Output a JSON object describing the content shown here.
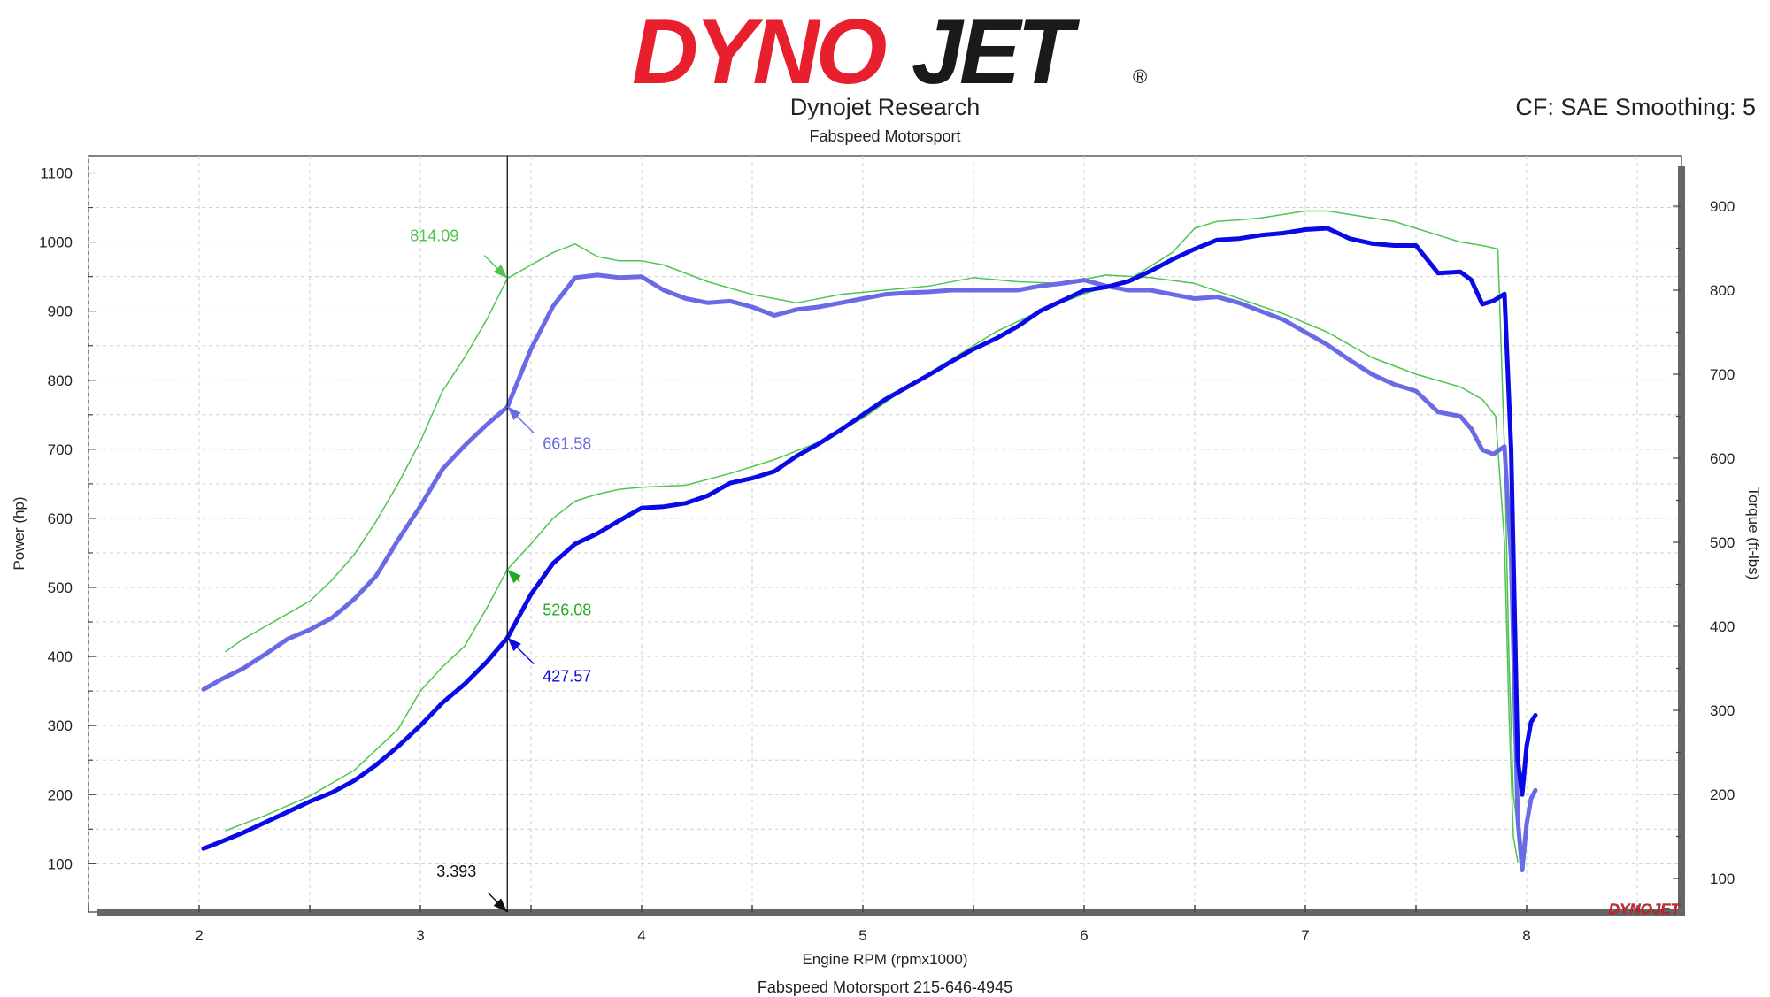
{
  "header": {
    "logo_text": "DYNOJET",
    "title": "Dynojet Research",
    "subtitle": "Fabspeed Motorsport",
    "settings": "CF: SAE Smoothing: 5"
  },
  "footer": {
    "text": "Fabspeed Motorsport 215-646-4945"
  },
  "colors": {
    "logo_red": "#e8202e",
    "logo_black": "#1a1a1a",
    "run_a": "#0a0ae6",
    "run_a_light": "#6a6ae6",
    "run_b": "#4fc44f",
    "cursor": "#111111"
  },
  "chart_data": {
    "type": "line",
    "xlabel": "Engine RPM (rpmx1000)",
    "ylabel": "Power (hp)",
    "y2label": "Torque (ft-lbs)",
    "xlim": [
      1.5,
      8.7
    ],
    "ylim": [
      30,
      1125
    ],
    "y2lim": [
      60,
      960
    ],
    "x_ticks": [
      "2",
      "3",
      "4",
      "5",
      "6",
      "7",
      "8"
    ],
    "y_ticks": [
      "100",
      "200",
      "300",
      "400",
      "500",
      "600",
      "700",
      "800",
      "900",
      "1000",
      "1100"
    ],
    "y2_ticks": [
      "100",
      "200",
      "300",
      "400",
      "500",
      "600",
      "700",
      "800",
      "900"
    ],
    "grid": true,
    "cursor": {
      "x": 3.393,
      "label": "3.393"
    },
    "watermark": "DYNOJET",
    "annotations": [
      {
        "label": "814.09",
        "target": "Torque (run B)",
        "x": 3.393,
        "value": 814.09,
        "axis": "torque",
        "color": "#4fc44f"
      },
      {
        "label": "661.58",
        "target": "Torque (run A)",
        "x": 3.393,
        "value": 661.58,
        "axis": "torque",
        "color": "#6a6ae6"
      },
      {
        "label": "526.08",
        "target": "Power (run B)",
        "x": 3.393,
        "value": 526.08,
        "axis": "power",
        "color": "#22aa22"
      },
      {
        "label": "427.57",
        "target": "Power (run A)",
        "x": 3.393,
        "value": 427.57,
        "axis": "power",
        "color": "#0a0ae6"
      }
    ],
    "series": [
      {
        "id": "power_a",
        "axis": "power",
        "color": "#0a0ae6",
        "width": 5,
        "x": [
          2.02,
          2.1,
          2.2,
          2.3,
          2.4,
          2.5,
          2.6,
          2.7,
          2.8,
          2.9,
          3.0,
          3.1,
          3.2,
          3.3,
          3.393,
          3.5,
          3.6,
          3.7,
          3.8,
          3.9,
          4.0,
          4.1,
          4.2,
          4.3,
          4.4,
          4.5,
          4.6,
          4.7,
          4.8,
          4.9,
          5.0,
          5.1,
          5.2,
          5.3,
          5.4,
          5.5,
          5.6,
          5.7,
          5.8,
          5.9,
          6.0,
          6.1,
          6.2,
          6.3,
          6.4,
          6.5,
          6.6,
          6.7,
          6.8,
          6.9,
          7.0,
          7.1,
          7.2,
          7.3,
          7.4,
          7.5,
          7.6,
          7.7,
          7.75,
          7.8,
          7.85,
          7.9,
          7.93,
          7.96,
          7.98,
          8.0,
          8.02,
          8.04
        ],
        "y": [
          122,
          132,
          145,
          160,
          175,
          190,
          203,
          220,
          243,
          270,
          300,
          333,
          360,
          392,
          427,
          490,
          535,
          563,
          578,
          597,
          615,
          617,
          622,
          633,
          651,
          658,
          668,
          690,
          708,
          728,
          750,
          772,
          790,
          808,
          827,
          845,
          860,
          878,
          900,
          915,
          930,
          935,
          943,
          958,
          975,
          990,
          1003,
          1005,
          1010,
          1013,
          1018,
          1020,
          1005,
          998,
          995,
          995,
          955,
          957,
          945,
          910,
          915,
          925,
          700,
          250,
          200,
          270,
          305,
          315
        ]
      },
      {
        "id": "torque_a",
        "axis": "torque",
        "color": "#6a6ae6",
        "width": 5,
        "x": [
          2.02,
          2.1,
          2.2,
          2.3,
          2.4,
          2.5,
          2.6,
          2.7,
          2.8,
          2.9,
          3.0,
          3.1,
          3.2,
          3.3,
          3.393,
          3.5,
          3.6,
          3.7,
          3.8,
          3.9,
          4.0,
          4.1,
          4.2,
          4.3,
          4.4,
          4.5,
          4.6,
          4.7,
          4.8,
          4.9,
          5.0,
          5.1,
          5.2,
          5.3,
          5.4,
          5.5,
          5.6,
          5.7,
          5.8,
          5.9,
          6.0,
          6.1,
          6.2,
          6.3,
          6.4,
          6.5,
          6.6,
          6.7,
          6.8,
          6.9,
          7.0,
          7.1,
          7.2,
          7.3,
          7.4,
          7.5,
          7.6,
          7.7,
          7.75,
          7.8,
          7.85,
          7.9,
          7.93,
          7.96,
          7.98,
          8.0,
          8.02,
          8.04
        ],
        "y": [
          325,
          337,
          350,
          367,
          385,
          396,
          410,
          432,
          460,
          503,
          543,
          587,
          615,
          640,
          661,
          730,
          781,
          815,
          818,
          815,
          816,
          800,
          790,
          785,
          787,
          780,
          770,
          777,
          780,
          785,
          790,
          795,
          797,
          798,
          800,
          800,
          800,
          800,
          805,
          808,
          812,
          805,
          800,
          800,
          795,
          790,
          792,
          785,
          775,
          765,
          750,
          735,
          717,
          700,
          688,
          680,
          655,
          650,
          635,
          610,
          605,
          614,
          480,
          170,
          110,
          165,
          195,
          205
        ]
      },
      {
        "id": "power_b",
        "axis": "power",
        "color": "#4fc44f",
        "width": 1.5,
        "x": [
          2.12,
          2.3,
          2.5,
          2.7,
          2.9,
          3.0,
          3.1,
          3.2,
          3.3,
          3.393,
          3.5,
          3.6,
          3.7,
          3.8,
          3.9,
          4.0,
          4.2,
          4.4,
          4.6,
          4.8,
          5.0,
          5.2,
          5.4,
          5.6,
          5.8,
          6.0,
          6.2,
          6.4,
          6.5,
          6.6,
          6.7,
          6.8,
          6.9,
          7.0,
          7.1,
          7.2,
          7.3,
          7.4,
          7.5,
          7.6,
          7.7,
          7.8,
          7.87,
          7.9,
          7.92,
          7.94,
          7.96
        ],
        "y": [
          148,
          170,
          198,
          235,
          295,
          350,
          385,
          415,
          470,
          526,
          563,
          600,
          625,
          635,
          642,
          645,
          648,
          665,
          685,
          710,
          745,
          790,
          830,
          870,
          900,
          925,
          945,
          985,
          1020,
          1030,
          1032,
          1035,
          1040,
          1045,
          1045,
          1040,
          1035,
          1030,
          1020,
          1010,
          1000,
          995,
          990,
          700,
          400,
          200,
          150
        ]
      },
      {
        "id": "torque_b",
        "axis": "torque",
        "color": "#4fc44f",
        "width": 1.5,
        "x": [
          2.12,
          2.2,
          2.3,
          2.4,
          2.5,
          2.6,
          2.7,
          2.8,
          2.9,
          3.0,
          3.1,
          3.2,
          3.3,
          3.393,
          3.5,
          3.6,
          3.7,
          3.8,
          3.9,
          4.0,
          4.1,
          4.3,
          4.5,
          4.7,
          4.9,
          5.1,
          5.3,
          5.5,
          5.7,
          5.9,
          6.1,
          6.3,
          6.5,
          6.7,
          6.9,
          7.1,
          7.3,
          7.5,
          7.7,
          7.8,
          7.86,
          7.9,
          7.92,
          7.94,
          7.96
        ],
        "y": [
          370,
          385,
          400,
          415,
          430,
          455,
          485,
          525,
          570,
          620,
          680,
          720,
          765,
          814,
          830,
          845,
          855,
          840,
          835,
          835,
          830,
          810,
          795,
          785,
          795,
          800,
          805,
          815,
          810,
          808,
          818,
          815,
          808,
          790,
          772,
          750,
          720,
          700,
          685,
          670,
          650,
          500,
          300,
          150,
          120
        ]
      }
    ]
  }
}
